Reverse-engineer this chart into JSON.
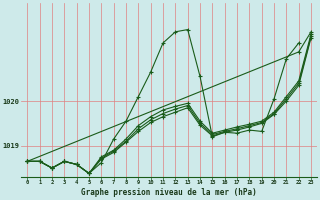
{
  "title": "Graphe pression niveau de la mer (hPa)",
  "background_color": "#ceeaea",
  "grid_color": "#e08080",
  "line_color": "#1a5c1a",
  "yticks": [
    1019,
    1020
  ],
  "ylim": [
    1018.3,
    1022.2
  ],
  "xlim": [
    -0.5,
    23.5
  ],
  "series_main": [
    1018.65,
    1018.65,
    1018.5,
    1018.65,
    1018.58,
    1018.38,
    1018.62,
    1019.15,
    1019.55,
    1020.1,
    1020.65,
    1021.3,
    1021.55,
    1021.6,
    1020.55,
    1019.2,
    1019.3,
    1019.28,
    1019.35,
    1019.32,
    1020.05,
    1020.95,
    1021.3,
    null
  ],
  "series_diag": [
    1018.65,
    null,
    null,
    null,
    null,
    null,
    null,
    null,
    null,
    null,
    null,
    null,
    null,
    null,
    null,
    null,
    null,
    null,
    null,
    null,
    null,
    null,
    1021.1,
    1021.55
  ],
  "series_mid1": [
    1018.65,
    1018.65,
    1018.5,
    1018.65,
    1018.58,
    1018.38,
    1018.75,
    1018.9,
    1019.15,
    1019.45,
    1019.65,
    1019.8,
    1019.88,
    1019.95,
    1019.55,
    1019.28,
    1019.35,
    1019.42,
    1019.48,
    1019.55,
    1019.75,
    1020.1,
    1020.45,
    1021.5
  ],
  "series_mid2": [
    1018.65,
    1018.65,
    1018.5,
    1018.65,
    1018.58,
    1018.38,
    1018.72,
    1018.88,
    1019.1,
    1019.38,
    1019.58,
    1019.72,
    1019.82,
    1019.9,
    1019.5,
    1019.25,
    1019.32,
    1019.38,
    1019.45,
    1019.52,
    1019.72,
    1020.05,
    1020.4,
    1021.45
  ],
  "series_flat": [
    1018.65,
    1018.65,
    1018.5,
    1018.65,
    1018.58,
    1018.38,
    1018.7,
    1018.85,
    1019.08,
    1019.32,
    1019.52,
    1019.65,
    1019.75,
    1019.85,
    1019.46,
    1019.22,
    1019.3,
    1019.35,
    1019.42,
    1019.5,
    1019.7,
    1020.0,
    1020.35,
    1021.42
  ]
}
